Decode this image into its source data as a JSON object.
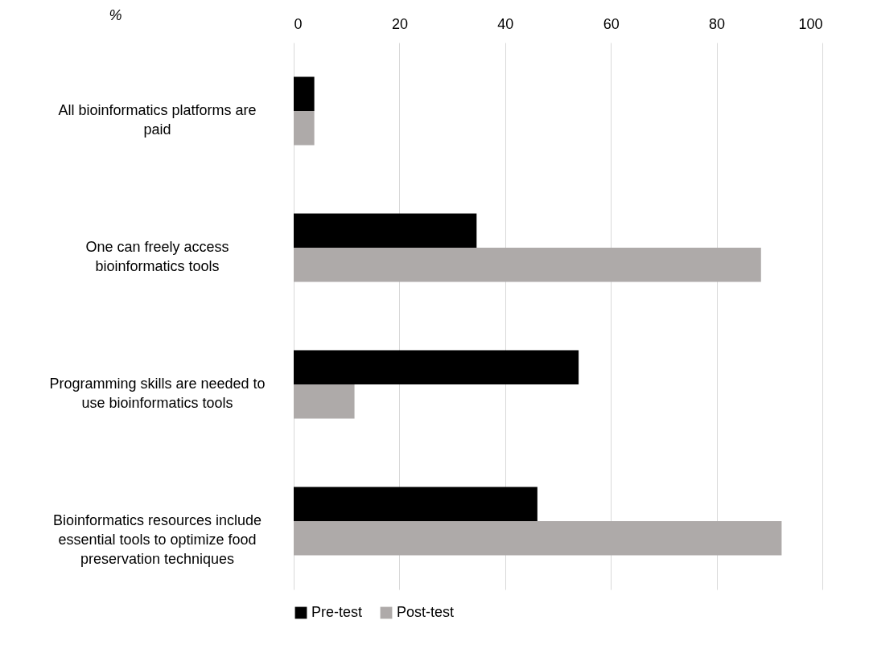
{
  "chart_data": {
    "type": "bar",
    "orientation": "horizontal",
    "xlabel": "%",
    "categories": [
      "All bioinformatics platforms are paid",
      "One can freely access bioinformatics tools",
      "Programming skills are needed to use bioinformatics tools",
      "Bioinformatics resources include essential tools to optimize food preservation techniques"
    ],
    "series": [
      {
        "name": "Pre-test",
        "color": "#000000",
        "values": [
          3.9,
          34.6,
          53.9,
          46.1
        ]
      },
      {
        "name": "Post-test",
        "color": "#aeaaa9",
        "values": [
          3.9,
          88.4,
          11.5,
          92.3
        ]
      }
    ],
    "xlim": [
      0,
      100
    ],
    "xticks": [
      0,
      20,
      40,
      60,
      80,
      100
    ],
    "grid": "x",
    "legend": "bottom"
  }
}
